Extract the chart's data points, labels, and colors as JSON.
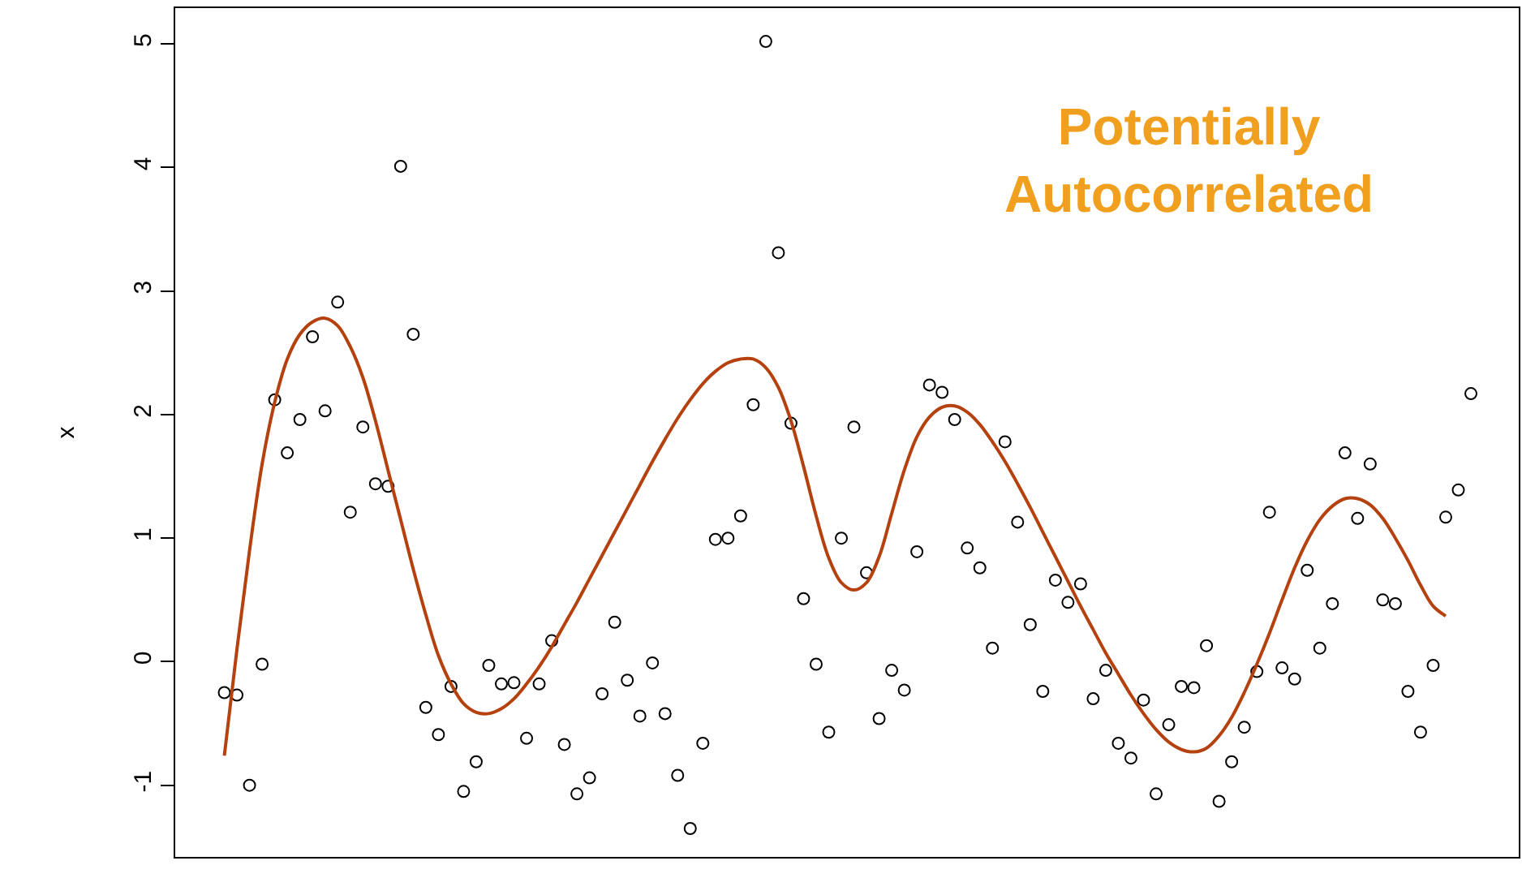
{
  "chart_data": {
    "type": "scatter",
    "ylabel": "x",
    "ylim": [
      -1.58,
      5.29
    ],
    "yticks": [
      -1,
      0,
      1,
      2,
      3,
      4,
      5
    ],
    "marker": "circle",
    "categories": [
      null,
      null,
      null,
      null,
      null,
      null,
      null,
      null,
      null,
      null,
      null,
      null,
      null,
      null,
      null,
      null,
      null,
      null,
      null,
      null,
      null,
      null,
      null,
      null,
      null,
      null,
      null,
      null,
      null,
      null,
      null,
      null,
      null,
      null,
      null,
      null,
      null,
      null,
      null,
      null,
      null,
      null,
      null,
      null,
      null,
      null,
      null,
      null,
      null,
      null,
      null,
      null,
      null,
      null,
      null,
      null,
      null,
      null,
      null,
      null,
      null,
      null,
      null,
      null,
      null,
      null,
      null,
      null,
      null,
      null,
      null,
      null,
      null,
      null,
      null,
      null,
      null,
      null,
      null,
      null,
      null,
      null,
      null,
      null,
      null,
      null,
      null,
      null,
      null,
      null,
      null,
      null,
      null,
      null,
      null,
      null,
      null,
      null,
      null,
      null
    ],
    "annotations": [
      "Potentially\nAutocorrelated"
    ],
    "series": [
      {
        "color": "#000000",
        "values": [
          -0.25,
          -0.27,
          -1.0,
          -0.02,
          2.12,
          1.69,
          1.96,
          2.63,
          2.03,
          2.91,
          1.21,
          1.9,
          1.44,
          1.42,
          4.01,
          2.65,
          -0.37,
          -0.59,
          -0.2,
          -1.05,
          -0.81,
          -0.03,
          -0.18,
          -0.17,
          -0.62,
          -0.18,
          0.17,
          -0.67,
          -1.07,
          -0.94,
          -0.26,
          0.32,
          -0.15,
          -0.44,
          -0.01,
          -0.42,
          -0.92,
          -1.35,
          -0.66,
          0.99,
          1.0,
          1.18,
          2.08,
          5.02,
          3.31,
          1.93,
          0.51,
          -0.02,
          -0.57,
          1.0,
          1.9,
          0.72,
          -0.46,
          -0.07,
          -0.23,
          0.89,
          2.24,
          2.18,
          1.96,
          0.92,
          0.76,
          0.11,
          1.78,
          1.13,
          0.3,
          -0.24,
          0.66,
          0.48,
          0.63,
          -0.3,
          -0.07,
          -0.66,
          -0.78,
          -0.31,
          -1.07,
          -0.51,
          -0.2,
          -0.21,
          0.13,
          -1.13,
          -0.81,
          -0.53,
          -0.08,
          1.21,
          -0.05,
          -0.14,
          0.74,
          0.11,
          0.47,
          1.69,
          1.16,
          1.6,
          0.5,
          0.47,
          -0.24,
          -0.57,
          -0.03,
          1.17,
          1.39,
          2.17
        ]
      },
      {
        "type": "line",
        "color": "#b5410f",
        "marker": "none",
        "line_style": "solid",
        "values": [
          -0.76,
          0.1,
          0.9,
          1.6,
          2.1,
          2.45,
          2.65,
          2.75,
          2.78,
          2.72,
          2.55,
          2.3,
          1.95,
          1.55,
          1.15,
          0.75,
          0.38,
          0.05,
          -0.18,
          -0.34,
          -0.41,
          -0.42,
          -0.38,
          -0.3,
          -0.18,
          -0.04,
          0.12,
          0.3,
          0.48,
          0.67,
          0.86,
          1.05,
          1.24,
          1.43,
          1.62,
          1.8,
          1.97,
          2.12,
          2.25,
          2.35,
          2.42,
          2.45,
          2.45,
          2.38,
          2.22,
          1.95,
          1.58,
          1.18,
          0.84,
          0.64,
          0.58,
          0.64,
          0.85,
          1.2,
          1.55,
          1.82,
          1.98,
          2.06,
          2.07,
          2.02,
          1.92,
          1.78,
          1.62,
          1.44,
          1.25,
          1.05,
          0.85,
          0.65,
          0.45,
          0.26,
          0.07,
          -0.1,
          -0.27,
          -0.42,
          -0.55,
          -0.65,
          -0.71,
          -0.73,
          -0.7,
          -0.6,
          -0.45,
          -0.25,
          -0.02,
          0.23,
          0.5,
          0.76,
          0.98,
          1.15,
          1.26,
          1.32,
          1.32,
          1.27,
          1.16,
          1.0,
          0.82,
          0.62,
          0.45,
          0.37,
          null,
          null
        ]
      }
    ]
  }
}
